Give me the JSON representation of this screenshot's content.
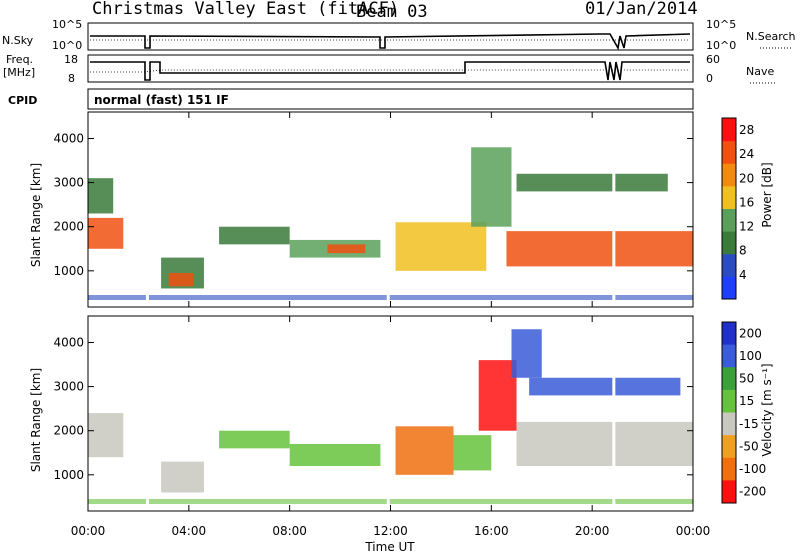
{
  "header": {
    "title": "Christmas Valley East (fitACF)",
    "beam": "Beam 03",
    "date": "01/Jan/2014"
  },
  "top_panels": {
    "nsky_label": "N.Sky",
    "nsky_ticks": [
      "10^5",
      "10^0"
    ],
    "nsearch_label": "N.Search",
    "nsearch_ticks": [
      "10^5",
      "10^0"
    ],
    "freq_label_1": "Freq.",
    "freq_label_2": "[MHz]",
    "freq_ticks": [
      "18",
      "8"
    ],
    "nave_label": "Nave",
    "nave_ticks": [
      "60",
      "0"
    ],
    "cpid_label": "CPID",
    "cpid_text": "normal (fast) 151 IF"
  },
  "colors": {
    "power_scale": [
      "#1f3fff",
      "#2a4cc0",
      "#3a7a3a",
      "#5aa05a",
      "#f0c020",
      "#f08a10",
      "#f05010",
      "#ff1010"
    ],
    "velocity_scale": [
      "#2030c8",
      "#3a5cd8",
      "#3aa03a",
      "#66c23c",
      "#c8c8c0",
      "#f0a020",
      "#f07010",
      "#ff1010"
    ],
    "ground_scatter": "#c0c0bc"
  },
  "chart_data": [
    {
      "type": "heatmap",
      "panel": "power",
      "ylabel": "Slant Range [km]",
      "xlabel": "Time UT",
      "x_ticks": [
        "00:00",
        "04:00",
        "08:00",
        "12:00",
        "16:00",
        "20:00",
        "00:00"
      ],
      "y_ticks": [
        "1000",
        "2000",
        "3000",
        "4000"
      ],
      "ylim": [
        180,
        4600
      ],
      "xlim_hours": [
        0,
        24
      ],
      "colorbar": {
        "label": "Power [dB]",
        "ticks": [
          "4",
          "8",
          "12",
          "16",
          "20",
          "24",
          "28"
        ],
        "range": [
          0,
          30
        ]
      },
      "regions": [
        {
          "t0": 0.0,
          "t1": 1.4,
          "r0": 1500,
          "r1": 2200,
          "level": 24
        },
        {
          "t0": 0.0,
          "t1": 1.0,
          "r0": 2300,
          "r1": 3100,
          "level": 10
        },
        {
          "t0": 2.9,
          "t1": 4.6,
          "r0": 600,
          "r1": 1300,
          "level": 8
        },
        {
          "t0": 3.2,
          "t1": 4.2,
          "r0": 650,
          "r1": 950,
          "level": 26
        },
        {
          "t0": 5.2,
          "t1": 8.0,
          "r0": 1600,
          "r1": 2000,
          "level": 10
        },
        {
          "t0": 8.0,
          "t1": 11.6,
          "r0": 1300,
          "r1": 1700,
          "level": 14
        },
        {
          "t0": 9.5,
          "t1": 11.0,
          "r0": 1400,
          "r1": 1600,
          "level": 24
        },
        {
          "t0": 12.2,
          "t1": 15.8,
          "r0": 1000,
          "r1": 2100,
          "level": 16
        },
        {
          "t0": 15.2,
          "t1": 16.8,
          "r0": 2000,
          "r1": 3800,
          "level": 14
        },
        {
          "t0": 16.6,
          "t1": 24.0,
          "r0": 1100,
          "r1": 1900,
          "level": 26
        },
        {
          "t0": 17.0,
          "t1": 23.0,
          "r0": 2800,
          "r1": 3200,
          "level": 8
        }
      ]
    },
    {
      "type": "heatmap",
      "panel": "velocity",
      "ylabel": "Slant Range [km]",
      "xlabel": "Time UT",
      "x_ticks": [
        "00:00",
        "04:00",
        "08:00",
        "12:00",
        "16:00",
        "20:00",
        "00:00"
      ],
      "y_ticks": [
        "1000",
        "2000",
        "3000",
        "4000"
      ],
      "ylim": [
        180,
        4600
      ],
      "xlim_hours": [
        0,
        24
      ],
      "colorbar": {
        "label": "Velocity [m s⁻¹]",
        "ticks": [
          "200",
          "100",
          "50",
          "15",
          "-15",
          "-50",
          "-100",
          "-200"
        ]
      },
      "regions": [
        {
          "t0": 0.0,
          "t1": 1.4,
          "r0": 1400,
          "r1": 2400,
          "level": 0
        },
        {
          "t0": 2.9,
          "t1": 4.6,
          "r0": 600,
          "r1": 1300,
          "level": 0
        },
        {
          "t0": 5.2,
          "t1": 8.0,
          "r0": 1600,
          "r1": 2000,
          "level": 30
        },
        {
          "t0": 8.0,
          "t1": 11.6,
          "r0": 1200,
          "r1": 1700,
          "level": 40
        },
        {
          "t0": 12.2,
          "t1": 14.5,
          "r0": 1000,
          "r1": 2100,
          "level": -60
        },
        {
          "t0": 14.5,
          "t1": 16.0,
          "r0": 1100,
          "r1": 1900,
          "level": 30
        },
        {
          "t0": 15.5,
          "t1": 17.0,
          "r0": 2000,
          "r1": 3600,
          "level": -150
        },
        {
          "t0": 16.8,
          "t1": 18.0,
          "r0": 3200,
          "r1": 4300,
          "level": 150
        },
        {
          "t0": 17.0,
          "t1": 24.0,
          "r0": 1200,
          "r1": 2200,
          "level": 0
        },
        {
          "t0": 17.5,
          "t1": 23.5,
          "r0": 2800,
          "r1": 3200,
          "level": 120
        }
      ]
    }
  ]
}
